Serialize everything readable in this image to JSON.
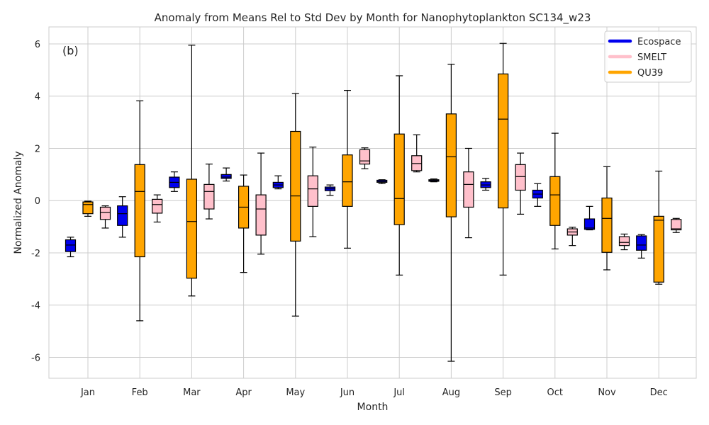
{
  "chart_data": {
    "type": "boxplot",
    "title": "Anomaly from Means Rel to Std Dev by Month for Nanophytoplankton SC134_w23",
    "xlabel": "Month",
    "ylabel": "Normalized Anomaly",
    "panel_label": "(b)",
    "ylim": [
      -6.8,
      6.65
    ],
    "yticks": [
      -6,
      -4,
      -2,
      0,
      2,
      4,
      6
    ],
    "grid": true,
    "legend_position": "top-right",
    "categories": [
      "Jan",
      "Feb",
      "Mar",
      "Apr",
      "May",
      "Jun",
      "Jul",
      "Aug",
      "Sep",
      "Oct",
      "Nov",
      "Dec"
    ],
    "series": [
      {
        "name": "Ecospace",
        "color": "#0000ee",
        "boxes": [
          {
            "min": -2.15,
            "q1": -1.95,
            "median": -1.7,
            "q3": -1.5,
            "max": -1.4
          },
          {
            "min": -1.4,
            "q1": -0.95,
            "median": -0.5,
            "q3": -0.2,
            "max": 0.15
          },
          {
            "min": 0.35,
            "q1": 0.5,
            "median": 0.7,
            "q3": 0.9,
            "max": 1.1
          },
          {
            "min": 0.75,
            "q1": 0.85,
            "median": 0.9,
            "q3": 1.0,
            "max": 1.25
          },
          {
            "min": 0.45,
            "q1": 0.5,
            "median": 0.6,
            "q3": 0.7,
            "max": 0.95
          },
          {
            "min": 0.2,
            "q1": 0.38,
            "median": 0.45,
            "q3": 0.52,
            "max": 0.6
          },
          {
            "min": 0.65,
            "q1": 0.7,
            "median": 0.73,
            "q3": 0.78,
            "max": 0.8
          },
          {
            "min": 0.72,
            "q1": 0.74,
            "median": 0.77,
            "q3": 0.8,
            "max": 0.83
          },
          {
            "min": 0.4,
            "q1": 0.5,
            "median": 0.6,
            "q3": 0.72,
            "max": 0.85
          },
          {
            "min": -0.22,
            "q1": 0.1,
            "median": 0.25,
            "q3": 0.4,
            "max": 0.65
          },
          {
            "min": -1.12,
            "q1": -1.1,
            "median": -1.05,
            "q3": -0.7,
            "max": -0.22
          },
          {
            "min": -2.2,
            "q1": -1.9,
            "median": -1.7,
            "q3": -1.35,
            "max": -1.3
          }
        ]
      },
      {
        "name": "QU39",
        "color": "#ffa500",
        "boxes": [
          {
            "min": -0.6,
            "q1": -0.5,
            "median": -0.15,
            "q3": -0.05,
            "max": -0.02
          },
          {
            "min": -4.6,
            "q1": -2.15,
            "median": 0.35,
            "q3": 1.38,
            "max": 3.82
          },
          {
            "min": -3.65,
            "q1": -2.97,
            "median": -0.8,
            "q3": 0.82,
            "max": 5.95
          },
          {
            "min": -2.75,
            "q1": -1.05,
            "median": -0.25,
            "q3": 0.55,
            "max": 0.98
          },
          {
            "min": -4.42,
            "q1": -1.55,
            "median": 0.18,
            "q3": 2.65,
            "max": 4.1
          },
          {
            "min": -1.82,
            "q1": -0.22,
            "median": 0.72,
            "q3": 1.75,
            "max": 4.22
          },
          {
            "min": -2.85,
            "q1": -0.92,
            "median": 0.08,
            "q3": 2.55,
            "max": 4.78
          },
          {
            "min": -6.15,
            "q1": -0.62,
            "median": 1.68,
            "q3": 3.32,
            "max": 5.22
          },
          {
            "min": -2.85,
            "q1": -0.28,
            "median": 3.12,
            "q3": 4.85,
            "max": 6.02
          },
          {
            "min": -1.85,
            "q1": -0.95,
            "median": 0.22,
            "q3": 0.92,
            "max": 2.58
          },
          {
            "min": -2.65,
            "q1": -1.98,
            "median": -0.68,
            "q3": 0.1,
            "max": 1.3
          },
          {
            "min": -3.2,
            "q1": -3.12,
            "median": -0.75,
            "q3": -0.6,
            "max": 1.13
          }
        ]
      },
      {
        "name": "SMELT",
        "color": "#ffc0cb",
        "boxes": [
          {
            "min": -1.05,
            "q1": -0.72,
            "median": -0.45,
            "q3": -0.25,
            "max": -0.2
          },
          {
            "min": -0.82,
            "q1": -0.48,
            "median": -0.15,
            "q3": 0.05,
            "max": 0.22
          },
          {
            "min": -0.7,
            "q1": -0.32,
            "median": 0.35,
            "q3": 0.62,
            "max": 1.4
          },
          {
            "min": -2.05,
            "q1": -1.32,
            "median": -0.32,
            "q3": 0.22,
            "max": 1.82
          },
          {
            "min": -1.38,
            "q1": -0.22,
            "median": 0.45,
            "q3": 0.95,
            "max": 2.05
          },
          {
            "min": 1.22,
            "q1": 1.4,
            "median": 1.52,
            "q3": 1.95,
            "max": 2.02
          },
          {
            "min": 1.1,
            "q1": 1.15,
            "median": 1.42,
            "q3": 1.72,
            "max": 2.52
          },
          {
            "min": -1.42,
            "q1": -0.25,
            "median": 0.62,
            "q3": 1.1,
            "max": 2.0
          },
          {
            "min": -0.52,
            "q1": 0.4,
            "median": 0.92,
            "q3": 1.38,
            "max": 1.82
          },
          {
            "min": -1.72,
            "q1": -1.32,
            "median": -1.2,
            "q3": -1.08,
            "max": -1.02
          },
          {
            "min": -1.88,
            "q1": -1.72,
            "median": -1.6,
            "q3": -1.38,
            "max": -1.28
          },
          {
            "min": -1.22,
            "q1": -1.12,
            "median": -1.08,
            "q3": -0.72,
            "max": -0.68
          }
        ]
      }
    ],
    "legend": [
      {
        "name": "Ecospace",
        "color": "#0000ee"
      },
      {
        "name": "SMELT",
        "color": "#ffc0cb"
      },
      {
        "name": "QU39",
        "color": "#ffa500"
      }
    ]
  }
}
